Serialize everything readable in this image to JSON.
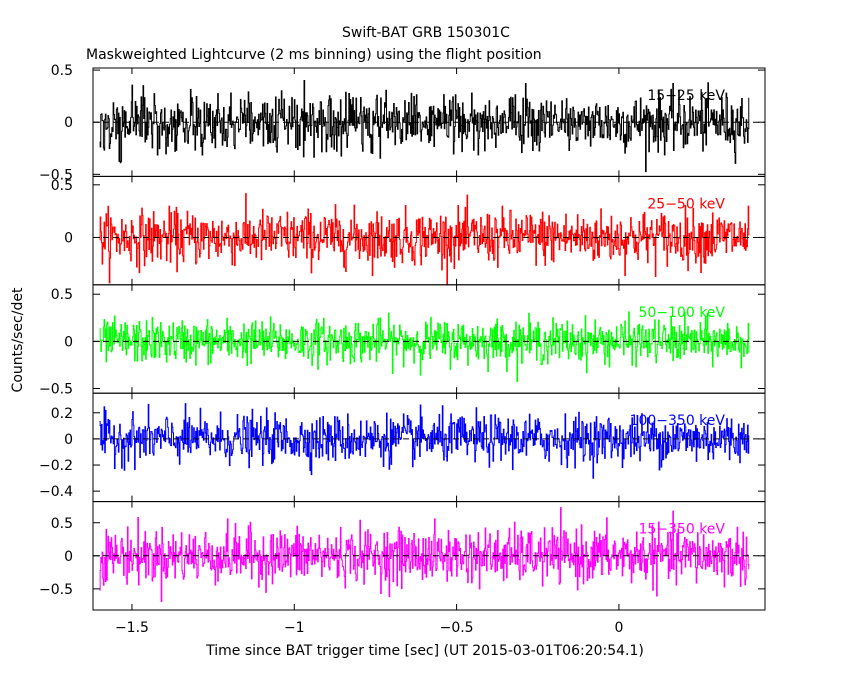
{
  "chart_data": {
    "type": "line",
    "title": "Swift-BAT GRB 150301C",
    "subtitle": "Maskweighted Lightcurve (2 ms binning) using the flight position",
    "xlabel": "Time since BAT trigger time [sec] (UT 2015-03-01T06:20:54.1)",
    "ylabel": "Counts/sec/det",
    "xlim": [
      -1.62,
      0.45
    ],
    "xticks": [
      -1.5,
      -1,
      -0.5,
      0
    ],
    "xtick_labels": [
      "−1.5",
      "−1",
      "−0.5",
      "0"
    ],
    "data_x_range": [
      -1.6,
      0.4
    ],
    "bin_width_sec": 0.002,
    "grid": false,
    "panels": [
      {
        "band": "15−25 keV",
        "color": "#000000",
        "ylim": [
          -0.52,
          0.52
        ],
        "yticks": [
          -0.5,
          0,
          0.5
        ],
        "ytick_labels": [
          "−0.5",
          "0",
          "0.5"
        ],
        "noise_amplitude": 0.3
      },
      {
        "band": "25−50 keV",
        "color": "#ff0000",
        "ylim": [
          -0.45,
          0.58
        ],
        "yticks": [
          0,
          0.5
        ],
        "ytick_labels": [
          "0",
          "0.5"
        ],
        "noise_amplitude": 0.28
      },
      {
        "band": "50−100 keV",
        "color": "#00ff00",
        "ylim": [
          -0.55,
          0.6
        ],
        "yticks": [
          -0.5,
          0,
          0.5
        ],
        "ytick_labels": [
          "−0.5",
          "0",
          "0.5"
        ],
        "noise_amplitude": 0.25
      },
      {
        "band": "100−350 keV",
        "color": "#0000ff",
        "ylim": [
          -0.48,
          0.35
        ],
        "yticks": [
          -0.4,
          -0.2,
          0,
          0.2
        ],
        "ytick_labels": [
          "−0.4",
          "−0.2",
          "0",
          "0.2"
        ],
        "noise_amplitude": 0.2
      },
      {
        "band": "15−350 keV",
        "color": "#ff00ff",
        "ylim": [
          -0.82,
          0.82
        ],
        "yticks": [
          -0.5,
          0,
          0.5
        ],
        "ytick_labels": [
          "−0.5",
          "0",
          "0.5"
        ],
        "noise_amplitude": 0.45
      }
    ]
  }
}
